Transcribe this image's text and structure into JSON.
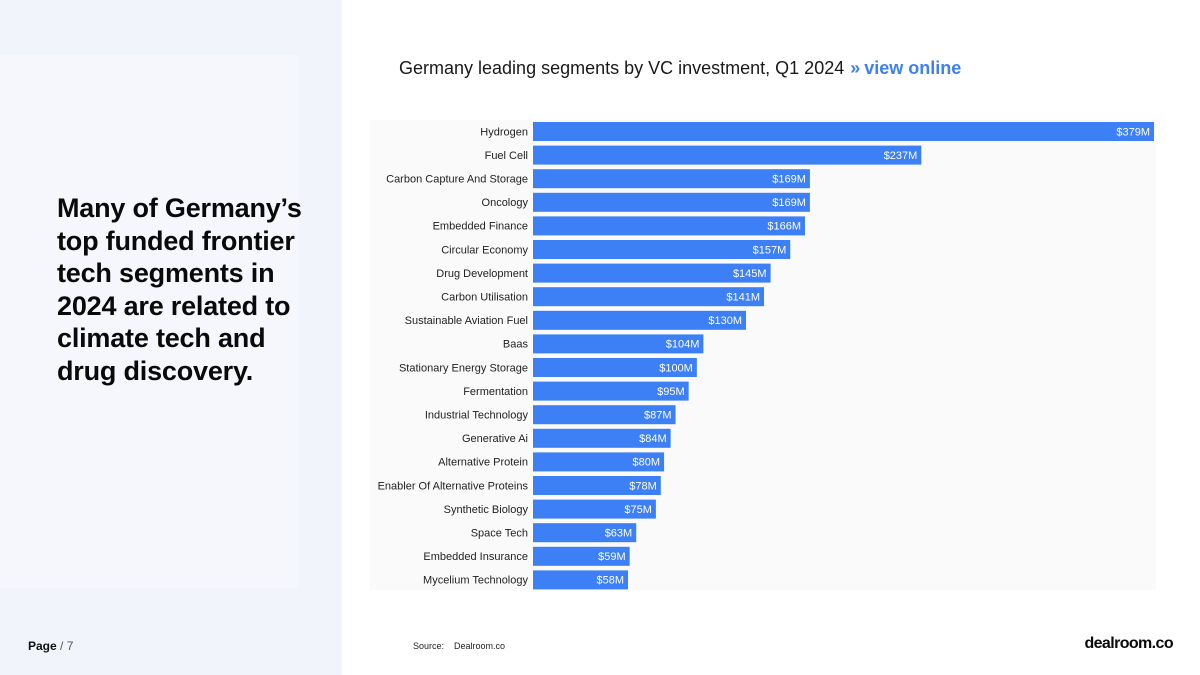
{
  "headline": "Many of Germany’s top funded frontier tech segments in 2024 are related to climate tech and drug discovery.",
  "chart_header": {
    "title": "Germany leading segments by VC investment, Q1 2024",
    "separator": "»",
    "link_label": "view online"
  },
  "footer": {
    "page_label": "Page",
    "page_number": "/ 7",
    "source_label": "Source:",
    "source_value": "Dealroom.co",
    "brand": "dealroom.co"
  },
  "colors": {
    "bar": "#3d7ff5",
    "link": "#3d7ff5"
  },
  "chart_data": {
    "type": "bar",
    "orientation": "horizontal",
    "title": "Germany leading segments by VC investment, Q1 2024",
    "categories": [
      "Hydrogen",
      "Fuel Cell",
      "Carbon Capture And Storage",
      "Oncology",
      "Embedded Finance",
      "Circular Economy",
      "Drug Development",
      "Carbon Utilisation",
      "Sustainable Aviation Fuel",
      "Baas",
      "Stationary Energy Storage",
      "Fermentation",
      "Industrial Technology",
      "Generative Ai",
      "Alternative Protein",
      "Enabler Of Alternative Proteins",
      "Synthetic Biology",
      "Space Tech",
      "Embedded Insurance",
      "Mycelium Technology"
    ],
    "values": [
      379,
      237,
      169,
      169,
      166,
      157,
      145,
      141,
      130,
      104,
      100,
      95,
      87,
      84,
      80,
      78,
      75,
      63,
      59,
      58
    ],
    "labels": [
      "$379M",
      "$237M",
      "$169M",
      "$169M",
      "$166M",
      "$157M",
      "$145M",
      "$141M",
      "$130M",
      "$104M",
      "$100M",
      "$95M",
      "$87M",
      "$84M",
      "$80M",
      "$78M",
      "$75M",
      "$63M",
      "$59M",
      "$58M"
    ],
    "unit": "$M",
    "xlim": [
      0,
      379
    ],
    "grid": false,
    "legend": "none"
  }
}
